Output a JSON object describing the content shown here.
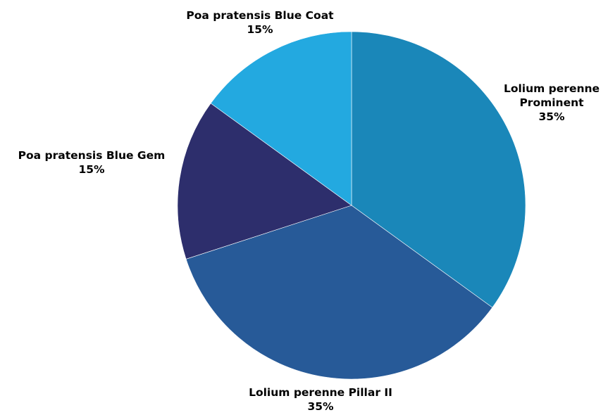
{
  "chart_data": {
    "type": "pie",
    "title": "",
    "start_angle": "12 o'clock",
    "direction": "clockwise",
    "slices": [
      {
        "label_lines": [
          "Lolium perenne",
          "Prominent"
        ],
        "value": 35,
        "value_label": "35%",
        "color": "#1a87b9"
      },
      {
        "label_lines": [
          "Lolium perenne Pillar II"
        ],
        "value": 35,
        "value_label": "35%",
        "color": "#275a98"
      },
      {
        "label_lines": [
          "Poa pratensis Blue Gem"
        ],
        "value": 15,
        "value_label": "15%",
        "color": "#2d2e6c"
      },
      {
        "label_lines": [
          "Poa pratensis Blue Coat"
        ],
        "value": 15,
        "value_label": "15%",
        "color": "#23a9e0"
      }
    ]
  }
}
